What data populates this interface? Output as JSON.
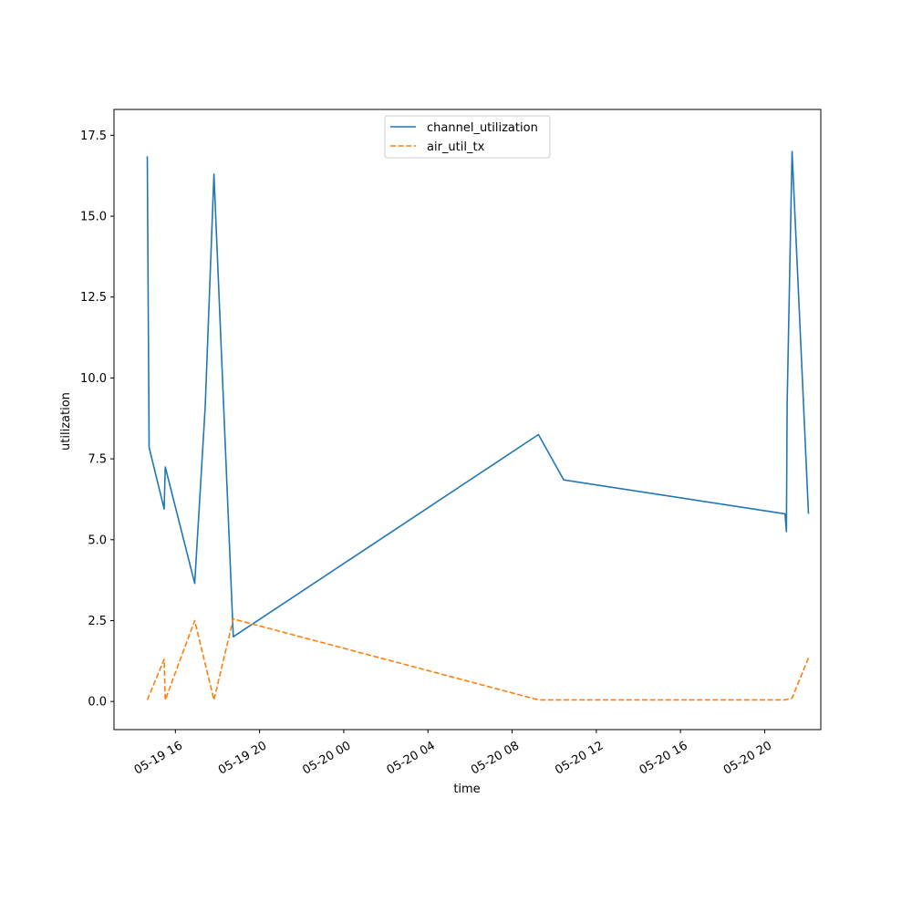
{
  "chart_data": {
    "type": "line",
    "title": "",
    "xlabel": "time",
    "ylabel": "utilization",
    "x_axis_type": "datetime",
    "xlim": [
      "2024-05-19T13:05",
      "2024-05-20T22:40"
    ],
    "ylim": [
      -0.87,
      18.3
    ],
    "x_ticks": [
      {
        "value": "2024-05-19T16:00",
        "label": "05-19 16"
      },
      {
        "value": "2024-05-19T20:00",
        "label": "05-19 20"
      },
      {
        "value": "2024-05-20T00:00",
        "label": "05-20 00"
      },
      {
        "value": "2024-05-20T04:00",
        "label": "05-20 04"
      },
      {
        "value": "2024-05-20T08:00",
        "label": "05-20 08"
      },
      {
        "value": "2024-05-20T12:00",
        "label": "05-20 12"
      },
      {
        "value": "2024-05-20T16:00",
        "label": "05-20 16"
      },
      {
        "value": "2024-05-20T20:00",
        "label": "05-20 20"
      }
    ],
    "y_ticks": [
      {
        "value": 0.0,
        "label": "0.0"
      },
      {
        "value": 2.5,
        "label": "2.5"
      },
      {
        "value": 5.0,
        "label": "5.0"
      },
      {
        "value": 7.5,
        "label": "7.5"
      },
      {
        "value": 10.0,
        "label": "10.0"
      },
      {
        "value": 12.5,
        "label": "12.5"
      },
      {
        "value": 15.0,
        "label": "15.0"
      },
      {
        "value": 17.5,
        "label": "17.5"
      }
    ],
    "grid": false,
    "legend_position": "top-center",
    "series": [
      {
        "name": "channel_utilization",
        "color": "#1f77b4",
        "line_style": "solid",
        "points": [
          {
            "x": "2024-05-19T14:40",
            "y": 16.85
          },
          {
            "x": "2024-05-19T14:45",
            "y": 7.85
          },
          {
            "x": "2024-05-19T15:28",
            "y": 5.95
          },
          {
            "x": "2024-05-19T15:31",
            "y": 7.25
          },
          {
            "x": "2024-05-19T16:55",
            "y": 3.65
          },
          {
            "x": "2024-05-19T17:25",
            "y": 9.1
          },
          {
            "x": "2024-05-19T17:50",
            "y": 16.3
          },
          {
            "x": "2024-05-19T18:45",
            "y": 2.0
          },
          {
            "x": "2024-05-20T09:15",
            "y": 8.25
          },
          {
            "x": "2024-05-20T10:27",
            "y": 6.85
          },
          {
            "x": "2024-05-20T20:58",
            "y": 5.8
          },
          {
            "x": "2024-05-20T21:02",
            "y": 5.25
          },
          {
            "x": "2024-05-20T21:04",
            "y": 9.2
          },
          {
            "x": "2024-05-20T21:18",
            "y": 17.0
          },
          {
            "x": "2024-05-20T22:05",
            "y": 5.8
          }
        ]
      },
      {
        "name": "air_util_tx",
        "color": "#ff7f0e",
        "line_style": "dashed",
        "points": [
          {
            "x": "2024-05-19T14:40",
            "y": 0.05
          },
          {
            "x": "2024-05-19T15:28",
            "y": 1.3
          },
          {
            "x": "2024-05-19T15:31",
            "y": 0.05
          },
          {
            "x": "2024-05-19T16:55",
            "y": 2.5
          },
          {
            "x": "2024-05-19T17:50",
            "y": 0.05
          },
          {
            "x": "2024-05-19T18:45",
            "y": 2.55
          },
          {
            "x": "2024-05-20T09:15",
            "y": 0.05
          },
          {
            "x": "2024-05-20T20:58",
            "y": 0.05
          },
          {
            "x": "2024-05-20T21:18",
            "y": 0.1
          },
          {
            "x": "2024-05-20T22:05",
            "y": 1.35
          }
        ]
      }
    ]
  }
}
